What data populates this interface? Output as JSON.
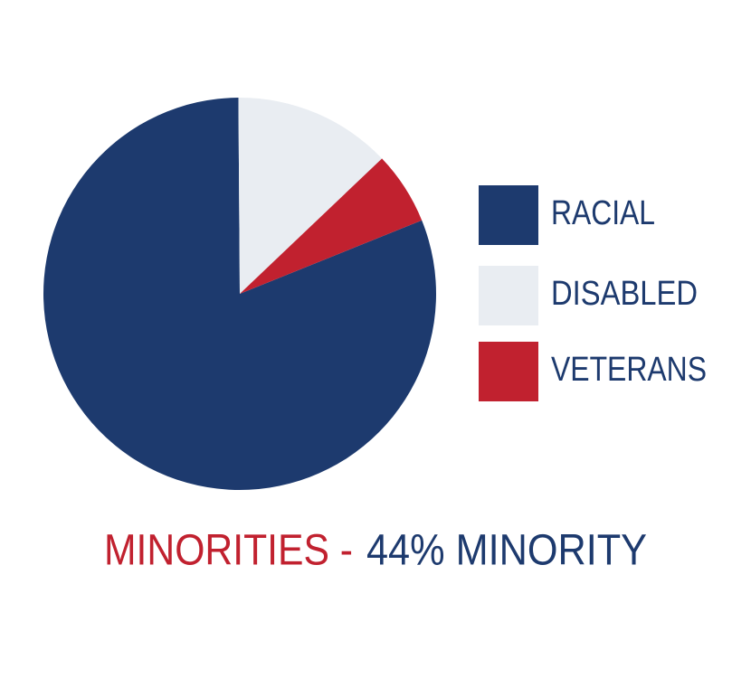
{
  "chart_data": {
    "type": "pie",
    "categories": [
      "RACIAL",
      "DISABLED",
      "VETERANS"
    ],
    "values": [
      81,
      13,
      6
    ],
    "colors": [
      "#1d3a6e",
      "#e9edf2",
      "#c1212f"
    ],
    "startangle": 68,
    "title_parts": [
      "MINORITIES -",
      "44% MINORITY"
    ]
  }
}
